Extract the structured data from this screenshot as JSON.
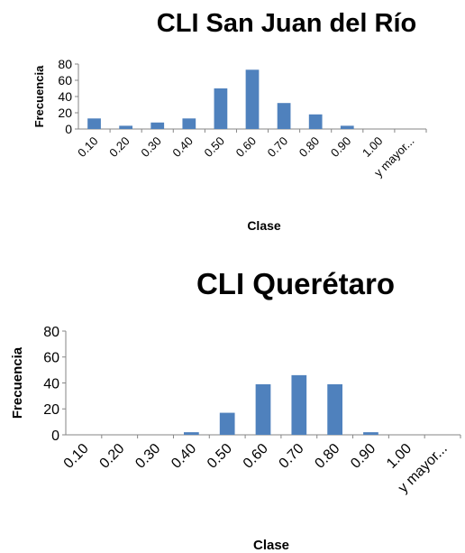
{
  "chart_data": [
    {
      "type": "bar",
      "title": "CLI San Juan del Río",
      "xlabel": "Clase",
      "ylabel": "Frecuencia",
      "categories": [
        "0.10",
        "0.20",
        "0.30",
        "0.40",
        "0.50",
        "0.60",
        "0.70",
        "0.80",
        "0.90",
        "1.00",
        "y mayor..."
      ],
      "values": [
        13,
        4,
        8,
        13,
        50,
        73,
        32,
        18,
        4,
        0,
        0
      ],
      "ylim": [
        0,
        80
      ],
      "yticks": [
        "0",
        "20",
        "40",
        "60",
        "80"
      ],
      "grid": false,
      "legend": "none"
    },
    {
      "type": "bar",
      "title": "CLI Querétaro",
      "xlabel": "Clase",
      "ylabel": "Frecuencia",
      "categories": [
        "0.10",
        "0.20",
        "0.30",
        "0.40",
        "0.50",
        "0.60",
        "0.70",
        "0.80",
        "0.90",
        "1.00",
        "y mayor..."
      ],
      "values": [
        0,
        0,
        0,
        2,
        17,
        39,
        46,
        39,
        2,
        0,
        0
      ],
      "ylim": [
        0,
        80
      ],
      "yticks": [
        "0",
        "20",
        "40",
        "60",
        "80"
      ],
      "grid": false,
      "legend": "none"
    }
  ],
  "colors": {
    "bar": "#4f81bd",
    "axis": "#868686"
  }
}
